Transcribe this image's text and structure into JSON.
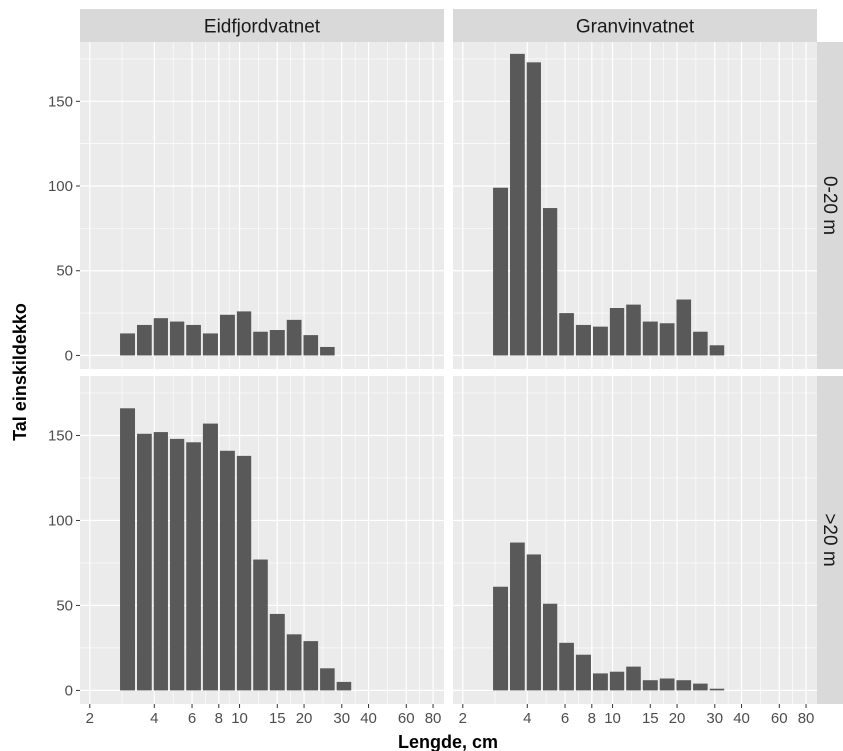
{
  "chart_data": {
    "type": "bar",
    "xlabel": "Lengde, cm",
    "ylabel": "Tal einskildekko",
    "x_scale": "log",
    "x_ticks": [
      2,
      4,
      6,
      8,
      10,
      15,
      20,
      30,
      40,
      60,
      80
    ],
    "x_tick_labels": [
      "2",
      "4",
      "6",
      "8",
      "10",
      "15",
      "20",
      "30",
      "40",
      "60",
      "80"
    ],
    "x_range": [
      1.8,
      90
    ],
    "y_ticks": [
      0,
      50,
      100,
      150
    ],
    "y_range": [
      -8,
      185
    ],
    "columns": [
      "Eidfjordvatnet",
      "Granvinvatnet"
    ],
    "rows": [
      "0-20 m",
      ">20 m"
    ],
    "bar_color": "#595959",
    "panel_background": "#ebebeb",
    "strip_background": "#d9d9d9",
    "grid": true,
    "bin_centers": [
      3,
      3.6,
      4.3,
      5.1,
      6.1,
      7.3,
      8.8,
      10.5,
      12.5,
      15,
      18,
      21.5,
      25.7,
      30.7,
      36.7,
      43.8,
      52.4,
      62.6
    ],
    "panels": [
      {
        "column": "Eidfjordvatnet",
        "row": "0-20 m",
        "values": [
          13,
          18,
          22,
          20,
          18,
          13,
          24,
          26,
          14,
          15,
          21,
          12,
          5,
          null,
          null,
          null,
          null,
          null
        ]
      },
      {
        "column": "Granvinvatnet",
        "row": "0-20 m",
        "values": [
          99,
          178,
          173,
          87,
          25,
          18,
          17,
          28,
          30,
          20,
          19,
          33,
          14,
          6,
          null,
          null,
          null,
          null
        ]
      },
      {
        "column": "Eidfjordvatnet",
        "row": ">20 m",
        "values": [
          166,
          151,
          152,
          148,
          146,
          157,
          141,
          138,
          77,
          45,
          33,
          29,
          13,
          5,
          null,
          null,
          null,
          null
        ]
      },
      {
        "column": "Granvinvatnet",
        "row": ">20 m",
        "values": [
          61,
          87,
          80,
          51,
          28,
          21,
          10,
          11,
          14,
          6,
          7,
          6,
          4,
          1,
          null,
          null,
          null,
          null
        ]
      }
    ]
  }
}
